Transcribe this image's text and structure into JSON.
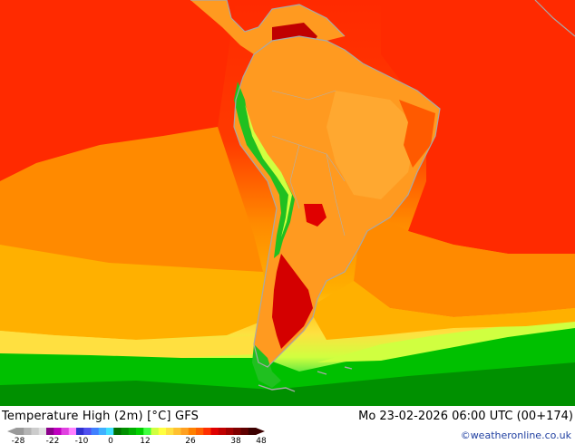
{
  "title": "Temperature High (2m) [°C] GFS",
  "datetime": "Mo 23-02-2026 06:00 UTC (00+174)",
  "credit": "©weatheronline.co.uk",
  "legend": {
    "ticks": [
      "-28",
      "-22",
      "-10",
      "0",
      "12",
      "26",
      "38",
      "48"
    ],
    "colors": [
      "#9a9a9a",
      "#b4b4b4",
      "#cccccc",
      "#e0e0e0",
      "#8b008b",
      "#c000c0",
      "#e040e0",
      "#ff80ff",
      "#3030d0",
      "#5050f0",
      "#4080ff",
      "#40b0ff",
      "#40e0ff",
      "#007000",
      "#009000",
      "#00b000",
      "#00d000",
      "#40ff40",
      "#d0ff40",
      "#ffff40",
      "#ffe040",
      "#ffc030",
      "#ffa020",
      "#ff8000",
      "#ff6000",
      "#ff3000",
      "#e00000",
      "#c00000",
      "#a00000",
      "#800000",
      "#600000",
      "#3c0000"
    ]
  },
  "colors": {
    "ocean_warm": "#ff3a00",
    "ocean_mid": "#ff8a00",
    "ocean_cool": "#ffc000",
    "cold_green": "#00c000",
    "land": "#ff9a20",
    "land_hot": "#d40000",
    "andes_green": "#20c020",
    "coast_gray": "#a8a8a8"
  }
}
